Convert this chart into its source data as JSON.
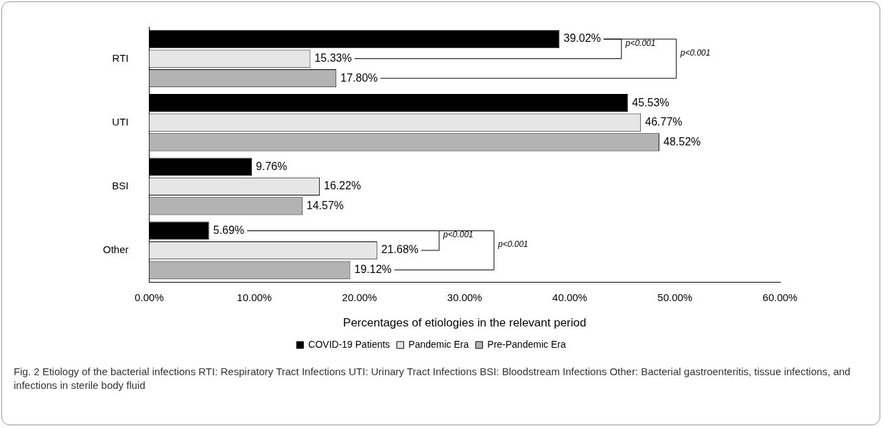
{
  "chart_data": {
    "type": "bar",
    "orientation": "horizontal",
    "xlabel": "Percentages of etiologies in the relevant period",
    "categories": [
      "RTI",
      "UTI",
      "BSI",
      "Other"
    ],
    "series": [
      {
        "name": "COVID-19 Patients",
        "color": "#000000",
        "values": [
          39.02,
          45.53,
          9.76,
          5.69
        ],
        "value_labels": [
          "39.02%",
          "45.53%",
          "9.76%",
          "5.69%"
        ]
      },
      {
        "name": "Pandemic Era",
        "color": "#e6e6e6",
        "values": [
          15.33,
          46.77,
          16.22,
          21.68
        ],
        "value_labels": [
          "15.33%",
          "46.77%",
          "16.22%",
          "21.68%"
        ]
      },
      {
        "name": "Pre-Pandemic Era",
        "color": "#b3b3b3",
        "values": [
          17.8,
          48.52,
          14.57,
          19.12
        ],
        "value_labels": [
          "17.80%",
          "48.52%",
          "14.57%",
          "19.12%"
        ]
      }
    ],
    "xlim": [
      0,
      60
    ],
    "xticks": [
      {
        "value": 0,
        "label": "0.00%"
      },
      {
        "value": 10,
        "label": "10.00%"
      },
      {
        "value": 20,
        "label": "20.00%"
      },
      {
        "value": 30,
        "label": "30.00%"
      },
      {
        "value": 40,
        "label": "40.00%"
      },
      {
        "value": 50,
        "label": "50.00%"
      },
      {
        "value": 60,
        "label": "60.00%"
      }
    ],
    "grid": false,
    "legend": "bottom",
    "annotations": [
      "p<0.001",
      "p<0.001",
      "p<0.001",
      "p<0.001",
      "Fig. 2  Etiology of the bacterial infections RTI: Respiratory Tract Infections UTI: Urinary Tract Infections BSI: Bloodstream Infections Other: Bacterial gastroenteritis, tissue infections, and infections in sterile body fluid"
    ]
  }
}
